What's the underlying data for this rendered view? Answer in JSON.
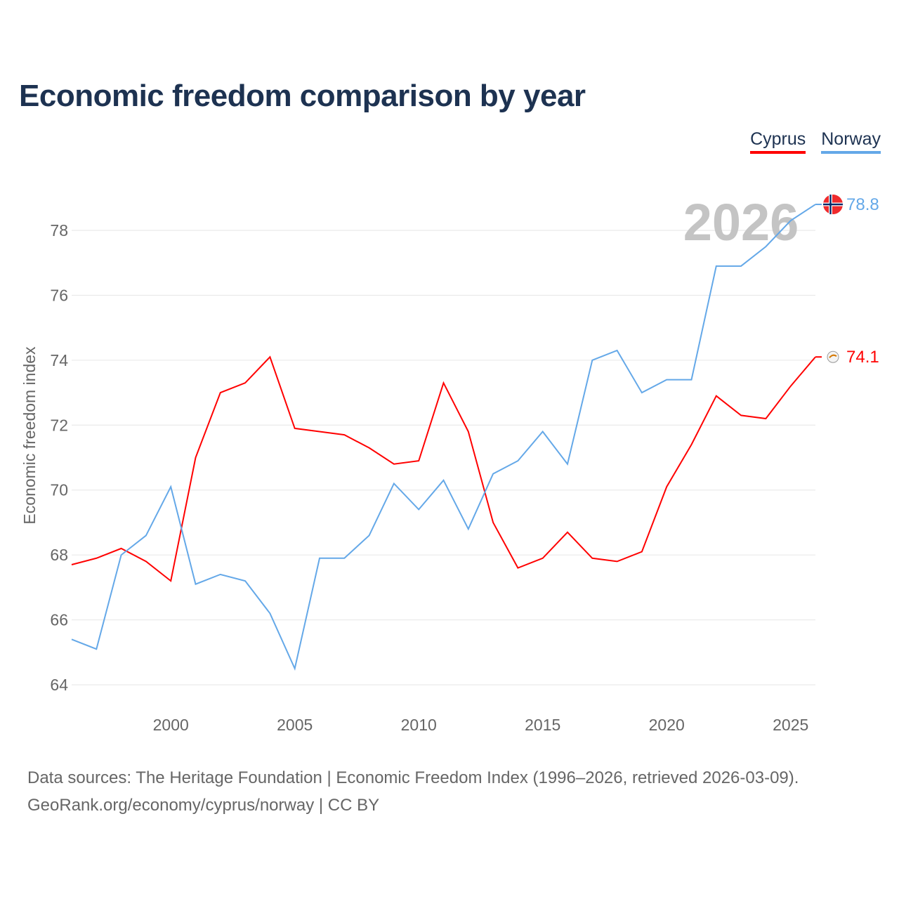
{
  "title": "Economic freedom comparison by year",
  "footer": {
    "line1": "Data sources: The Heritage Foundation | Economic Freedom Index (1996–2026, retrieved 2026-03-09).",
    "line2": "GeoRank.org/economy/cyprus/norway | CC BY"
  },
  "chart_data": {
    "type": "line",
    "title": "Economic freedom comparison by year",
    "xlabel": "",
    "ylabel": "Economic freedom index",
    "year_watermark": "2026",
    "xlim": [
      1996,
      2026
    ],
    "ylim": [
      63.2,
      80.2
    ],
    "yticks": [
      64,
      66,
      68,
      70,
      72,
      74,
      76,
      78
    ],
    "xticks": [
      2000,
      2005,
      2010,
      2015,
      2020,
      2025
    ],
    "grid": true,
    "legend_position": "top-right",
    "x": [
      1996,
      1997,
      1998,
      1999,
      2000,
      2001,
      2002,
      2003,
      2004,
      2005,
      2006,
      2007,
      2008,
      2009,
      2010,
      2011,
      2012,
      2013,
      2014,
      2015,
      2016,
      2017,
      2018,
      2019,
      2020,
      2021,
      2022,
      2023,
      2024,
      2025,
      2026
    ],
    "series": [
      {
        "name": "Cyprus",
        "color": "#ff0000",
        "end_label": "74.1",
        "values": [
          67.7,
          67.9,
          68.2,
          67.8,
          67.2,
          71.0,
          73.0,
          73.3,
          74.1,
          71.9,
          71.8,
          71.7,
          71.3,
          70.8,
          70.9,
          73.3,
          71.8,
          69.0,
          67.6,
          67.9,
          68.7,
          67.9,
          67.8,
          68.1,
          70.1,
          71.4,
          72.9,
          72.3,
          72.2,
          73.2,
          74.1
        ]
      },
      {
        "name": "Norway",
        "color": "#64a8e8",
        "end_label": "78.8",
        "values": [
          65.4,
          65.1,
          68.0,
          68.6,
          70.1,
          67.1,
          67.4,
          67.2,
          66.2,
          64.5,
          67.9,
          67.9,
          68.6,
          70.2,
          69.4,
          70.3,
          68.8,
          70.5,
          70.9,
          71.8,
          70.8,
          74.0,
          74.3,
          73.0,
          73.4,
          73.4,
          76.9,
          76.9,
          77.5,
          78.3,
          78.8
        ]
      }
    ]
  }
}
